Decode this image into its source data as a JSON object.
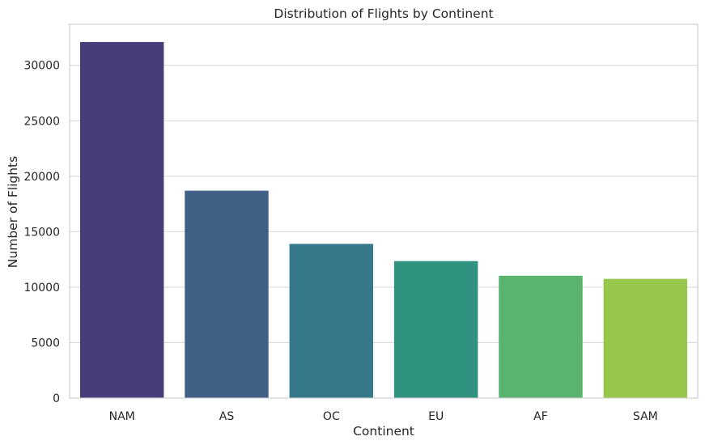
{
  "chart_data": {
    "type": "bar",
    "title": "Distribution of Flights by Continent",
    "xlabel": "Continent",
    "ylabel": "Number of Flights",
    "categories": [
      "NAM",
      "AS",
      "OC",
      "EU",
      "AF",
      "SAM"
    ],
    "values": [
      32100,
      18700,
      13900,
      12350,
      11030,
      10750
    ],
    "colors": [
      "#483D78",
      "#416086",
      "#35798A",
      "#2F9380",
      "#59B46F",
      "#97C64C"
    ],
    "ylim": [
      0,
      33700
    ],
    "yticks": [
      0,
      5000,
      10000,
      15000,
      20000,
      25000,
      30000
    ],
    "ytick_labels": [
      "0",
      "5000",
      "10000",
      "15000",
      "20000",
      "25000",
      "30000"
    ],
    "grid": "horizontal",
    "background": "#ffffff",
    "grid_color": "#d9d9d9",
    "spine_color": "#d0d0d0"
  }
}
